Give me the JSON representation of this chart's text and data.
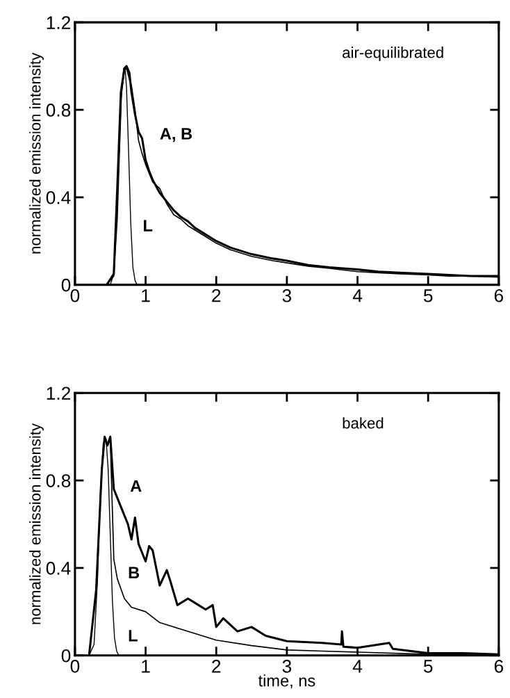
{
  "chart_data": [
    {
      "type": "line",
      "ylabel": "normalized emission intensity",
      "xlim": [
        0,
        6
      ],
      "ylim": [
        0,
        1.2
      ],
      "xticks": [
        0,
        1,
        2,
        3,
        4,
        5,
        6
      ],
      "yticks": [
        0,
        0.4,
        0.8,
        1.2
      ],
      "grid": false,
      "annotations": [
        "air-equilibrated",
        "A, B",
        "L"
      ],
      "series": [
        {
          "color": "#000000",
          "x": [
            0.45,
            0.55,
            0.6,
            0.65,
            0.7,
            0.73,
            0.77,
            0.8,
            0.85,
            0.9,
            0.95,
            1.0,
            1.05,
            1.1,
            1.2,
            1.3,
            1.4,
            1.5,
            1.6,
            1.7,
            1.8,
            2.0,
            2.2,
            2.5,
            2.8,
            3.0,
            3.3,
            3.6,
            4.0,
            4.3,
            4.6,
            5.0,
            5.3,
            5.6,
            6.0
          ],
          "values": [
            0,
            0.05,
            0.45,
            0.88,
            0.99,
            1.0,
            0.97,
            0.88,
            0.78,
            0.7,
            0.67,
            0.57,
            0.52,
            0.48,
            0.42,
            0.38,
            0.34,
            0.31,
            0.29,
            0.26,
            0.24,
            0.2,
            0.17,
            0.14,
            0.12,
            0.11,
            0.09,
            0.08,
            0.07,
            0.06,
            0.055,
            0.05,
            0.045,
            0.04,
            0.04
          ]
        },
        {
          "color": "#000000",
          "x": [
            0.45,
            0.55,
            0.6,
            0.65,
            0.7,
            0.73,
            0.77,
            0.8,
            0.85,
            0.9,
            0.95,
            1.0,
            1.05,
            1.1,
            1.2,
            1.3,
            1.4,
            1.5,
            1.6,
            1.7,
            1.8,
            2.0,
            2.2,
            2.5,
            2.8,
            3.0,
            3.3,
            3.6,
            4.0,
            4.3,
            4.6,
            5.0,
            5.3,
            5.6,
            6.0
          ],
          "values": [
            0,
            0.04,
            0.4,
            0.85,
            0.98,
            0.99,
            0.94,
            0.91,
            0.8,
            0.66,
            0.6,
            0.55,
            0.51,
            0.47,
            0.44,
            0.37,
            0.32,
            0.3,
            0.27,
            0.25,
            0.23,
            0.19,
            0.16,
            0.13,
            0.11,
            0.1,
            0.085,
            0.075,
            0.06,
            0.055,
            0.05,
            0.045,
            0.04,
            0.04,
            0.035
          ]
        },
        {
          "color": "#000000",
          "x": [
            0.5,
            0.55,
            0.6,
            0.63,
            0.66,
            0.69,
            0.71,
            0.73,
            0.76,
            0.79,
            0.82,
            0.85,
            0.88
          ],
          "values": [
            0,
            0.05,
            0.3,
            0.6,
            0.88,
            0.99,
            0.99,
            0.9,
            0.6,
            0.28,
            0.08,
            0.02,
            0
          ]
        }
      ]
    },
    {
      "type": "line",
      "xlabel": "time, ns",
      "ylabel": "normalized emission intensity",
      "xlim": [
        0,
        6
      ],
      "ylim": [
        0,
        1.2
      ],
      "xticks": [
        0,
        1,
        2,
        3,
        4,
        5,
        6
      ],
      "yticks": [
        0,
        0.4,
        0.8,
        1.2
      ],
      "grid": false,
      "annotations": [
        "baked",
        "A",
        "B",
        "L"
      ],
      "series": [
        {
          "color": "#000000",
          "x": [
            0.2,
            0.3,
            0.38,
            0.42,
            0.46,
            0.5,
            0.55,
            0.6,
            0.65,
            0.75,
            0.8,
            0.85,
            0.9,
            1.0,
            1.05,
            1.1,
            1.2,
            1.3,
            1.35,
            1.45,
            1.6,
            1.75,
            1.85,
            1.95,
            2.0,
            2.1,
            2.3,
            2.5,
            2.7,
            3.0,
            3.5,
            3.77,
            3.78,
            3.8,
            4.0,
            4.45,
            4.5,
            5.0,
            5.5,
            6.0
          ],
          "values": [
            0,
            0.3,
            0.85,
            1.0,
            0.96,
            1.0,
            0.76,
            0.72,
            0.68,
            0.6,
            0.53,
            0.63,
            0.51,
            0.43,
            0.5,
            0.48,
            0.32,
            0.39,
            0.34,
            0.23,
            0.26,
            0.23,
            0.21,
            0.23,
            0.13,
            0.17,
            0.11,
            0.13,
            0.09,
            0.065,
            0.057,
            0.05,
            0.11,
            0.04,
            0.035,
            0.057,
            0.03,
            0.01,
            0.01,
            0.005
          ]
        },
        {
          "color": "#000000",
          "x": [
            0.2,
            0.3,
            0.38,
            0.42,
            0.46,
            0.5,
            0.55,
            0.6,
            0.7,
            0.8,
            1.0,
            1.2,
            1.5,
            2.0,
            2.5,
            3.0,
            3.5,
            4.0,
            5.0,
            6.0
          ],
          "values": [
            0,
            0.3,
            0.85,
            1.0,
            0.96,
            0.99,
            0.44,
            0.35,
            0.26,
            0.22,
            0.2,
            0.15,
            0.12,
            0.07,
            0.045,
            0.025,
            0.02,
            0.015,
            0.005,
            0
          ]
        },
        {
          "color": "#000000",
          "x": [
            0.2,
            0.27,
            0.32,
            0.36,
            0.4,
            0.44,
            0.47,
            0.5,
            0.53,
            0.56,
            0.59,
            0.62
          ],
          "values": [
            0,
            0.05,
            0.35,
            0.75,
            0.97,
            0.99,
            0.85,
            0.55,
            0.25,
            0.08,
            0.02,
            0
          ]
        }
      ]
    }
  ]
}
